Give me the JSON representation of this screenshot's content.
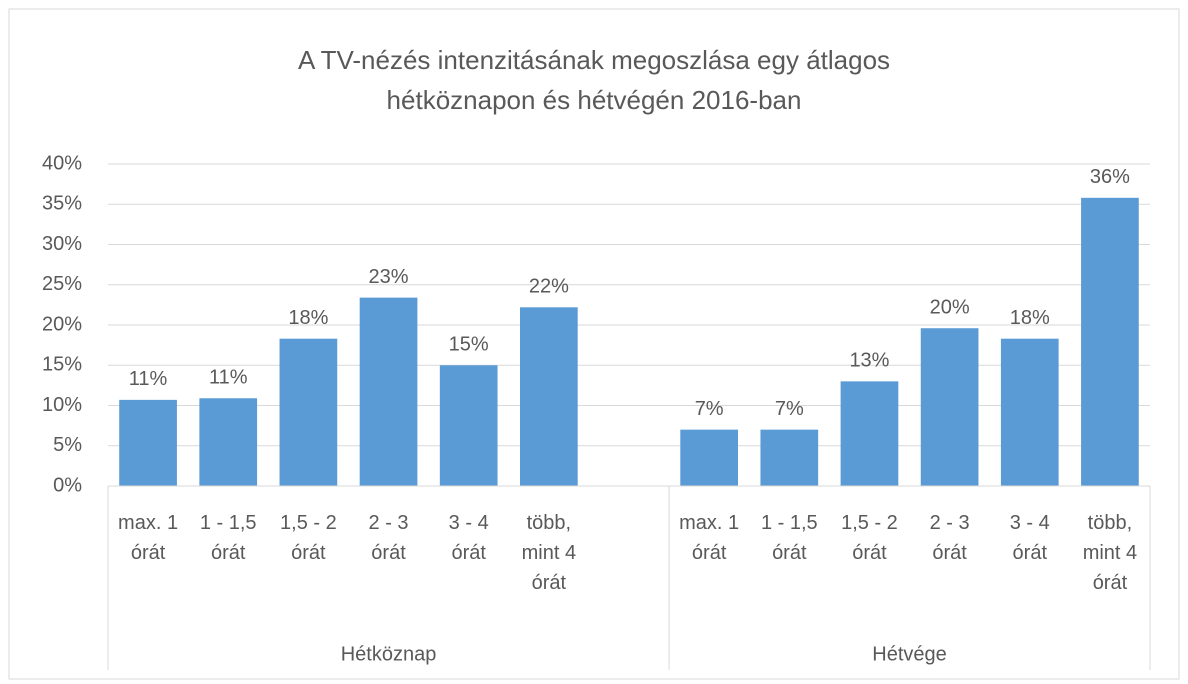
{
  "chart_data": {
    "type": "bar",
    "title": [
      "A TV-nézés intenzitásának megoszlása egy átlagos",
      "hétköznapon és hétvégén 2016-ban"
    ],
    "color": "#5b9bd5",
    "groups": [
      {
        "name": "Hétköznap",
        "categories": [
          "max. 1 órát",
          "1 - 1,5 órát",
          "1,5 - 2 órát",
          "2 - 3 órát",
          "3 - 4 órát",
          "több, mint 4 órát"
        ],
        "values": [
          10.7,
          10.9,
          18.3,
          23.4,
          15.0,
          22.2
        ],
        "value_labels": [
          "11%",
          "11%",
          "18%",
          "23%",
          "15%",
          "22%"
        ]
      },
      {
        "name": "Hétvége",
        "categories": [
          "max. 1 órát",
          "1 - 1,5 órát",
          "1,5 - 2 órát",
          "2 - 3 órát",
          "3 - 4 órát",
          "több, mint 4 órát"
        ],
        "values": [
          7.0,
          7.0,
          13.0,
          19.6,
          18.3,
          35.8
        ],
        "value_labels": [
          "7%",
          "7%",
          "13%",
          "20%",
          "18%",
          "36%"
        ]
      }
    ],
    "ylim": [
      0,
      40
    ],
    "yticks": [
      {
        "value": 0,
        "label": "0%"
      },
      {
        "value": 5,
        "label": "5%"
      },
      {
        "value": 10,
        "label": "10%"
      },
      {
        "value": 15,
        "label": "15%"
      },
      {
        "value": 20,
        "label": "20%"
      },
      {
        "value": 25,
        "label": "25%"
      },
      {
        "value": 30,
        "label": "30%"
      },
      {
        "value": 35,
        "label": "35%"
      },
      {
        "value": 40,
        "label": "40%"
      }
    ],
    "grid": true
  }
}
